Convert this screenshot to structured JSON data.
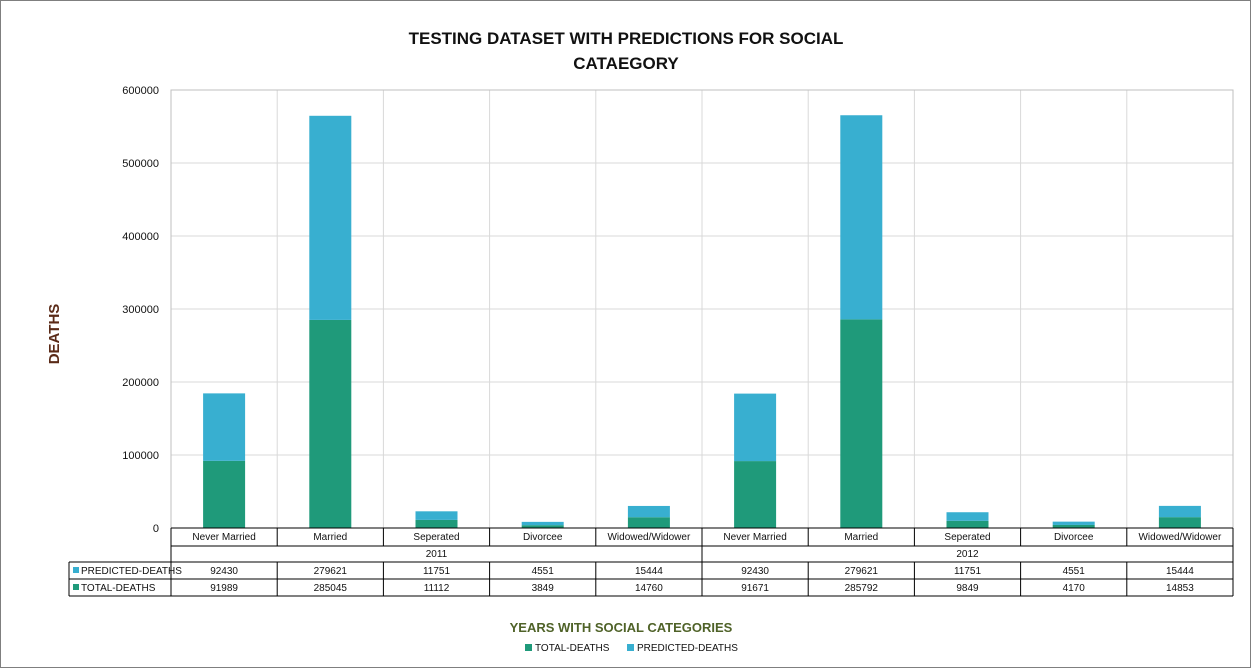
{
  "chart_data": {
    "type": "bar",
    "stacked": true,
    "title_lines": [
      "TESTING DATASET WITH PREDICTIONS FOR SOCIAL",
      "CATAEGORY"
    ],
    "ylabel": "DEATHS",
    "xlabel": "YEARS WITH SOCIAL CATEGORIES",
    "ylim": [
      0,
      600000
    ],
    "yticks": [
      0,
      100000,
      200000,
      300000,
      400000,
      500000,
      600000
    ],
    "ytick_labels": [
      "0",
      "100000",
      "200000",
      "300000",
      "400000",
      "500000",
      "600000"
    ],
    "grid": true,
    "legend_position": "bottom",
    "groups": [
      {
        "label": "2011",
        "categories": [
          "Never Married",
          "Married",
          "Seperated",
          "Divorcee",
          "Widowed/Widower"
        ]
      },
      {
        "label": "2012",
        "categories": [
          "Never Married",
          "Married",
          "Seperated",
          "Divorcee",
          "Widowed/Widower"
        ]
      }
    ],
    "series": [
      {
        "name": "TOTAL-DEATHS",
        "color": "#1f9a7a",
        "values": [
          91989,
          285045,
          11112,
          3849,
          14760,
          91671,
          285792,
          9849,
          4170,
          14853
        ]
      },
      {
        "name": "PREDICTED-DEATHS",
        "color": "#38afd0",
        "values": [
          92430,
          279621,
          11751,
          4551,
          15444,
          92430,
          279621,
          11751,
          4551,
          15444
        ]
      }
    ],
    "table_order": [
      "PREDICTED-DEATHS",
      "TOTAL-DEATHS"
    ],
    "table_values": {
      "PREDICTED-DEATHS": [
        "92430",
        "279621",
        "11751",
        "4551",
        "15444",
        "92430",
        "279621",
        "11751",
        "4551",
        "15444"
      ],
      "TOTAL-DEATHS": [
        "91989",
        "285045",
        "11112",
        "3849",
        "14760",
        "91671",
        "285792",
        "9849",
        "4170",
        "14853"
      ]
    }
  }
}
